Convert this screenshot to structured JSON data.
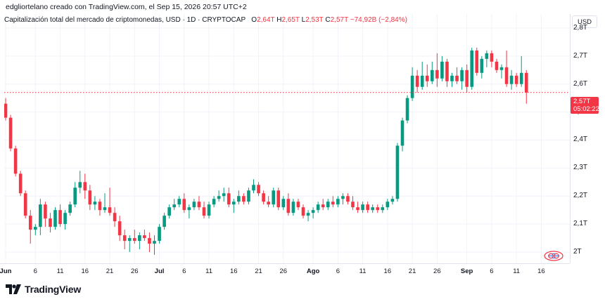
{
  "header": {
    "meta": "edgliortelano creado con TradingView.com, el Sep 15, 2026 20:57 UTC+2"
  },
  "legend": {
    "title": "Capitalización total del mercado de criptomonedas, USD · 1D · CRYPTOCAP",
    "o_label": "O",
    "o_value": "2,64T",
    "h_label": "H",
    "h_value": "2,65T",
    "l_label": "L",
    "l_value": "2,53T",
    "c_label": "C",
    "c_value": "2,57T",
    "change": "−74,92B (−2,84%)"
  },
  "price_axis": {
    "currency": "USD",
    "last_price": "2,57T",
    "countdown": "05:02:22"
  },
  "branding": {
    "logo_text": "TradingView",
    "logo_icon": "tradingview-logo-icon"
  },
  "colors": {
    "up": "#089981",
    "down": "#f23645",
    "grid": "#f0f3fa",
    "axis_text": "#131722"
  },
  "chart_data": {
    "type": "candlestick",
    "unit": "T USD",
    "y_ticks": [
      {
        "value": 2.0,
        "label": "2T"
      },
      {
        "value": 2.1,
        "label": "2,1T"
      },
      {
        "value": 2.2,
        "label": "2,2T"
      },
      {
        "value": 2.3,
        "label": "2,3T"
      },
      {
        "value": 2.4,
        "label": "2,4T"
      },
      {
        "value": 2.5,
        "label": "2,5T"
      },
      {
        "value": 2.6,
        "label": "2,6T"
      },
      {
        "value": 2.7,
        "label": "2,7T"
      },
      {
        "value": 2.8,
        "label": "2,8T"
      }
    ],
    "ylim": [
      1.96,
      2.85
    ],
    "x_ticks": [
      {
        "index": 0,
        "label": "Jun",
        "month": true
      },
      {
        "index": 6,
        "label": "6",
        "month": false
      },
      {
        "index": 11,
        "label": "11",
        "month": false
      },
      {
        "index": 16,
        "label": "16",
        "month": false
      },
      {
        "index": 21,
        "label": "21",
        "month": false
      },
      {
        "index": 26,
        "label": "26",
        "month": false
      },
      {
        "index": 31,
        "label": "Jul",
        "month": true
      },
      {
        "index": 36,
        "label": "6",
        "month": false
      },
      {
        "index": 41,
        "label": "11",
        "month": false
      },
      {
        "index": 46,
        "label": "16",
        "month": false
      },
      {
        "index": 51,
        "label": "21",
        "month": false
      },
      {
        "index": 56,
        "label": "26",
        "month": false
      },
      {
        "index": 62,
        "label": "Ago",
        "month": true
      },
      {
        "index": 67,
        "label": "6",
        "month": false
      },
      {
        "index": 72,
        "label": "11",
        "month": false
      },
      {
        "index": 77,
        "label": "16",
        "month": false
      },
      {
        "index": 82,
        "label": "21",
        "month": false
      },
      {
        "index": 87,
        "label": "26",
        "month": false
      },
      {
        "index": 93,
        "label": "Sep",
        "month": true
      },
      {
        "index": 98,
        "label": "6",
        "month": false
      },
      {
        "index": 103,
        "label": "11",
        "month": false
      },
      {
        "index": 108,
        "label": "16",
        "month": false
      }
    ],
    "last_price": 2.57,
    "candles": [
      [
        2.53,
        2.55,
        2.47,
        2.48
      ],
      [
        2.48,
        2.49,
        2.36,
        2.37
      ],
      [
        2.37,
        2.38,
        2.27,
        2.28
      ],
      [
        2.28,
        2.29,
        2.2,
        2.21
      ],
      [
        2.21,
        2.22,
        2.12,
        2.13
      ],
      [
        2.13,
        2.15,
        2.03,
        2.08
      ],
      [
        2.08,
        2.1,
        2.06,
        2.09
      ],
      [
        2.09,
        2.19,
        2.06,
        2.17
      ],
      [
        2.17,
        2.18,
        2.09,
        2.12
      ],
      [
        2.12,
        2.14,
        2.07,
        2.09
      ],
      [
        2.09,
        2.16,
        2.08,
        2.15
      ],
      [
        2.15,
        2.17,
        2.09,
        2.1
      ],
      [
        2.1,
        2.15,
        2.08,
        2.14
      ],
      [
        2.14,
        2.18,
        2.13,
        2.17
      ],
      [
        2.17,
        2.25,
        2.16,
        2.23
      ],
      [
        2.23,
        2.29,
        2.21,
        2.25
      ],
      [
        2.25,
        2.28,
        2.19,
        2.22
      ],
      [
        2.22,
        2.24,
        2.15,
        2.17
      ],
      [
        2.17,
        2.2,
        2.15,
        2.18
      ],
      [
        2.18,
        2.19,
        2.13,
        2.15
      ],
      [
        2.15,
        2.21,
        2.14,
        2.16
      ],
      [
        2.16,
        2.23,
        2.13,
        2.14
      ],
      [
        2.14,
        2.16,
        2.09,
        2.11
      ],
      [
        2.11,
        2.13,
        2.04,
        2.06
      ],
      [
        2.06,
        2.08,
        2.01,
        2.04
      ],
      [
        2.04,
        2.06,
        2.0,
        2.05
      ],
      [
        2.05,
        2.08,
        2.03,
        2.04
      ],
      [
        2.04,
        2.07,
        2.01,
        2.06
      ],
      [
        2.06,
        2.08,
        2.04,
        2.05
      ],
      [
        2.05,
        2.07,
        2.0,
        2.03
      ],
      [
        2.03,
        2.06,
        1.99,
        2.04
      ],
      [
        2.04,
        2.1,
        2.03,
        2.09
      ],
      [
        2.09,
        2.14,
        2.08,
        2.13
      ],
      [
        2.13,
        2.17,
        2.12,
        2.16
      ],
      [
        2.16,
        2.19,
        2.15,
        2.17
      ],
      [
        2.17,
        2.2,
        2.16,
        2.19
      ],
      [
        2.19,
        2.21,
        2.14,
        2.15
      ],
      [
        2.15,
        2.17,
        2.12,
        2.16
      ],
      [
        2.16,
        2.19,
        2.15,
        2.18
      ],
      [
        2.18,
        2.2,
        2.15,
        2.16
      ],
      [
        2.16,
        2.18,
        2.12,
        2.13
      ],
      [
        2.13,
        2.18,
        2.12,
        2.17
      ],
      [
        2.17,
        2.2,
        2.16,
        2.19
      ],
      [
        2.19,
        2.22,
        2.18,
        2.2
      ],
      [
        2.2,
        2.23,
        2.18,
        2.21
      ],
      [
        2.21,
        2.23,
        2.16,
        2.17
      ],
      [
        2.17,
        2.19,
        2.14,
        2.18
      ],
      [
        2.18,
        2.22,
        2.17,
        2.2
      ],
      [
        2.2,
        2.21,
        2.17,
        2.18
      ],
      [
        2.18,
        2.23,
        2.17,
        2.22
      ],
      [
        2.22,
        2.26,
        2.21,
        2.24
      ],
      [
        2.24,
        2.25,
        2.2,
        2.21
      ],
      [
        2.21,
        2.22,
        2.17,
        2.18
      ],
      [
        2.18,
        2.2,
        2.16,
        2.17
      ],
      [
        2.17,
        2.23,
        2.16,
        2.22
      ],
      [
        2.22,
        2.23,
        2.15,
        2.16
      ],
      [
        2.16,
        2.2,
        2.15,
        2.19
      ],
      [
        2.19,
        2.21,
        2.13,
        2.14
      ],
      [
        2.14,
        2.19,
        2.13,
        2.18
      ],
      [
        2.18,
        2.19,
        2.15,
        2.16
      ],
      [
        2.16,
        2.17,
        2.12,
        2.13
      ],
      [
        2.13,
        2.15,
        2.11,
        2.14
      ],
      [
        2.14,
        2.16,
        2.12,
        2.15
      ],
      [
        2.15,
        2.18,
        2.14,
        2.17
      ],
      [
        2.17,
        2.19,
        2.15,
        2.16
      ],
      [
        2.16,
        2.19,
        2.15,
        2.18
      ],
      [
        2.18,
        2.2,
        2.16,
        2.17
      ],
      [
        2.17,
        2.2,
        2.16,
        2.19
      ],
      [
        2.19,
        2.21,
        2.17,
        2.2
      ],
      [
        2.2,
        2.21,
        2.17,
        2.18
      ],
      [
        2.18,
        2.2,
        2.15,
        2.16
      ],
      [
        2.16,
        2.18,
        2.14,
        2.15
      ],
      [
        2.15,
        2.18,
        2.14,
        2.17
      ],
      [
        2.17,
        2.18,
        2.14,
        2.15
      ],
      [
        2.15,
        2.17,
        2.14,
        2.16
      ],
      [
        2.16,
        2.17,
        2.14,
        2.15
      ],
      [
        2.15,
        2.17,
        2.14,
        2.16
      ],
      [
        2.16,
        2.19,
        2.15,
        2.18
      ],
      [
        2.18,
        2.2,
        2.17,
        2.19
      ],
      [
        2.19,
        2.39,
        2.18,
        2.38
      ],
      [
        2.38,
        2.48,
        2.36,
        2.47
      ],
      [
        2.47,
        2.56,
        2.46,
        2.55
      ],
      [
        2.55,
        2.66,
        2.54,
        2.63
      ],
      [
        2.63,
        2.65,
        2.57,
        2.59
      ],
      [
        2.59,
        2.68,
        2.58,
        2.63
      ],
      [
        2.63,
        2.67,
        2.59,
        2.61
      ],
      [
        2.61,
        2.68,
        2.6,
        2.65
      ],
      [
        2.65,
        2.71,
        2.59,
        2.62
      ],
      [
        2.62,
        2.7,
        2.61,
        2.68
      ],
      [
        2.68,
        2.69,
        2.59,
        2.61
      ],
      [
        2.61,
        2.64,
        2.59,
        2.63
      ],
      [
        2.63,
        2.66,
        2.6,
        2.61
      ],
      [
        2.61,
        2.66,
        2.58,
        2.65
      ],
      [
        2.65,
        2.67,
        2.57,
        2.59
      ],
      [
        2.59,
        2.73,
        2.58,
        2.72
      ],
      [
        2.72,
        2.73,
        2.63,
        2.64
      ],
      [
        2.64,
        2.7,
        2.62,
        2.69
      ],
      [
        2.69,
        2.72,
        2.66,
        2.71
      ],
      [
        2.71,
        2.72,
        2.66,
        2.68
      ],
      [
        2.68,
        2.69,
        2.64,
        2.65
      ],
      [
        2.65,
        2.67,
        2.62,
        2.66
      ],
      [
        2.66,
        2.72,
        2.59,
        2.6
      ],
      [
        2.6,
        2.65,
        2.58,
        2.63
      ],
      [
        2.63,
        2.64,
        2.59,
        2.6
      ],
      [
        2.6,
        2.7,
        2.59,
        2.64
      ],
      [
        2.64,
        2.65,
        2.53,
        2.57
      ]
    ]
  }
}
